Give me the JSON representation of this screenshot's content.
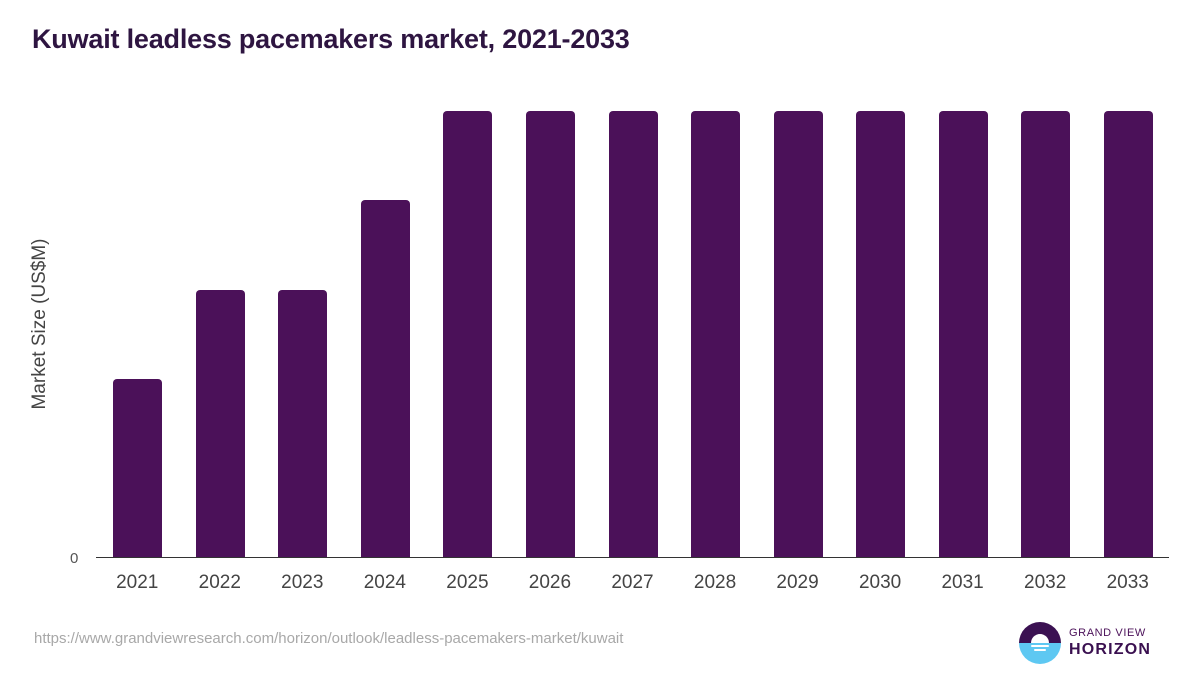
{
  "header": {
    "title": "Kuwait leadless pacemakers market, 2021-2033"
  },
  "axis": {
    "ylabel": "Market Size (US$M)",
    "zero_tick": "0"
  },
  "footer": {
    "source_url": "https://www.grandviewresearch.com/horizon/outlook/leadless-pacemakers-market/kuwait",
    "logo": {
      "line1": "GRAND VIEW",
      "line2": "HORIZON",
      "icon": "grand-view-horizon-logo-icon"
    }
  },
  "colors": {
    "bar": "#4b1159",
    "title": "#2e1541",
    "logo_dark": "#3b1152",
    "logo_light": "#5ec8f2"
  },
  "chart_data": {
    "type": "bar",
    "title": "Kuwait leadless pacemakers market, 2021-2033",
    "xlabel": "",
    "ylabel": "Market Size (US$M)",
    "categories": [
      "2021",
      "2022",
      "2023",
      "2024",
      "2025",
      "2026",
      "2027",
      "2028",
      "2029",
      "2030",
      "2031",
      "2032",
      "2033"
    ],
    "values": [
      0.4,
      0.6,
      0.6,
      0.8,
      1.0,
      1.0,
      1.0,
      1.0,
      1.0,
      1.0,
      1.0,
      1.0,
      1.0
    ],
    "values_note": "Relative heights (max = 1.0); y-axis shows only the 0 tick, absolute values not labeled",
    "ylim": [
      0,
      1.0
    ],
    "yticks": [
      "0"
    ],
    "grid": false,
    "legend": null
  }
}
